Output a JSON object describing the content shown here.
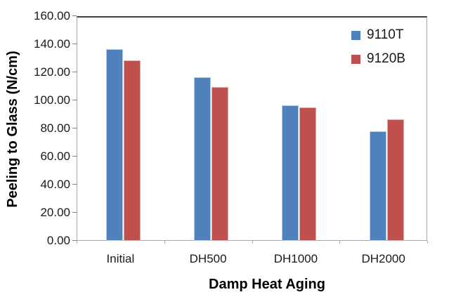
{
  "chart_data": {
    "type": "bar",
    "title": "",
    "categories": [
      "Initial",
      "DH500",
      "DH1000",
      "DH2000"
    ],
    "series": [
      {
        "name": "9110T",
        "color": "#4F81BD",
        "border_color": "#AECAE8",
        "values": [
          136.5,
          116.5,
          96.5,
          78.0
        ]
      },
      {
        "name": "9120B",
        "color": "#C0504D",
        "border_color": "#E0A8A6",
        "values": [
          128.5,
          109.5,
          95.0,
          86.5
        ]
      }
    ],
    "xlabel": "Damp Heat Aging",
    "ylabel": "Peeling to Glass (N/cm)",
    "ylim": [
      0,
      160
    ],
    "ytick_step": 20,
    "ytick_labels": [
      "0.00",
      "20.00",
      "40.00",
      "60.00",
      "80.00",
      "100.00",
      "120.00",
      "140.00",
      "160.00"
    ],
    "grid": false,
    "legend_position": "inside-top-right",
    "axis_colors": {
      "border": "#a6a6a6",
      "top_border": "#404040",
      "tick": "#808080",
      "text": "#1a1a1a"
    }
  }
}
